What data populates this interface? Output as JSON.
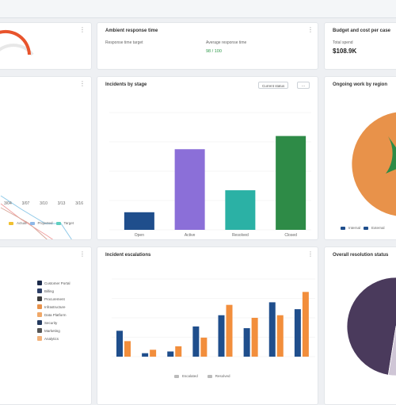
{
  "cards": {
    "satisfaction": {
      "title": "",
      "value": "",
      "label": ""
    },
    "response": {
      "title": "Ambient response time",
      "left_label": "Response time target",
      "right_label": "Average response time",
      "right_value": "98 / 100"
    },
    "budget": {
      "title": "Budget and cost per case",
      "label": "Total spend",
      "value": "$108.9K"
    },
    "burndown": {
      "title": "",
      "xticks": [
        "3/04",
        "3/07",
        "3/10",
        "3/13",
        "3/16"
      ],
      "legend": [
        "Actual",
        "Projected",
        "Target"
      ]
    },
    "stage": {
      "title": "Incidents by stage",
      "filter_label": "Current status",
      "chart_data": {
        "type": "bar",
        "categories": [
          "Open",
          "Active",
          "Resolved",
          "Closed"
        ],
        "values": [
          12,
          55,
          27,
          64
        ],
        "ylim": [
          0,
          80
        ],
        "colors": [
          "#1f4e8c",
          "#8b6fd8",
          "#2bb1a5",
          "#2e8b47"
        ]
      }
    },
    "pie_top": {
      "title": "Ongoing work by region",
      "legend": [
        "Internal",
        "External"
      ]
    },
    "left_bottom": {
      "categories": [
        "Customer Portal",
        "Billing",
        "Procurement",
        "Infrastructure",
        "Data Platform",
        "Security",
        "Marketing",
        "Analytics"
      ],
      "colors": [
        "#1b2a4a",
        "#2c3e66",
        "#3c3c3c",
        "#e8924a",
        "#f0a868",
        "#243a5e",
        "#555555",
        "#f2b27a"
      ]
    },
    "escalation": {
      "title": "Incident escalations",
      "legend": [
        "Escalated",
        "Resolved"
      ],
      "chart_data": {
        "type": "bar",
        "series": [
          {
            "name": "Escalated",
            "values": [
              30,
              4,
              6,
              35,
              48,
              33,
              63,
              55
            ]
          },
          {
            "name": "Resolved",
            "values": [
              18,
              8,
              12,
              22,
              60,
              45,
              48,
              75
            ]
          }
        ],
        "ylim": [
          0,
          90
        ],
        "colors": [
          "#1f4e8c",
          "#f28e3c"
        ]
      }
    },
    "pie_bottom": {
      "title": "Overall resolution status",
      "chart_data": {
        "type": "pie",
        "values": [
          55,
          25,
          12,
          8
        ],
        "colors": [
          "#4a3a5c",
          "#a86fa0",
          "#6b5a7a",
          "#cfc6d6"
        ]
      }
    }
  }
}
